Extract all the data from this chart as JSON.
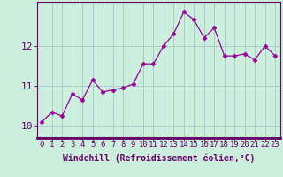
{
  "x": [
    0,
    1,
    2,
    3,
    4,
    5,
    6,
    7,
    8,
    9,
    10,
    11,
    12,
    13,
    14,
    15,
    16,
    17,
    18,
    19,
    20,
    21,
    22,
    23
  ],
  "y": [
    10.1,
    10.35,
    10.25,
    10.8,
    10.65,
    11.15,
    10.85,
    10.9,
    10.95,
    11.05,
    11.55,
    11.55,
    12.0,
    12.3,
    12.85,
    12.65,
    12.2,
    12.45,
    11.75,
    11.75,
    11.8,
    11.65,
    12.0,
    11.75
  ],
  "line_color": "#990099",
  "marker": "D",
  "marker_size": 2.5,
  "bg_color": "#cceedd",
  "grid_color": "#aacccc",
  "xlabel": "Windchill (Refroidissement éolien,°C)",
  "xlabel_color": "#660066",
  "yticks": [
    10,
    11,
    12
  ],
  "ylim": [
    9.7,
    13.1
  ],
  "xlim": [
    -0.5,
    23.5
  ],
  "xticks": [
    0,
    1,
    2,
    3,
    4,
    5,
    6,
    7,
    8,
    9,
    10,
    11,
    12,
    13,
    14,
    15,
    16,
    17,
    18,
    19,
    20,
    21,
    22,
    23
  ],
  "tick_color": "#660066",
  "axis_color": "#660066",
  "tick_fontsize": 6.5,
  "xlabel_fontsize": 7.0,
  "ytick_fontsize": 8.0,
  "line_width": 0.9
}
